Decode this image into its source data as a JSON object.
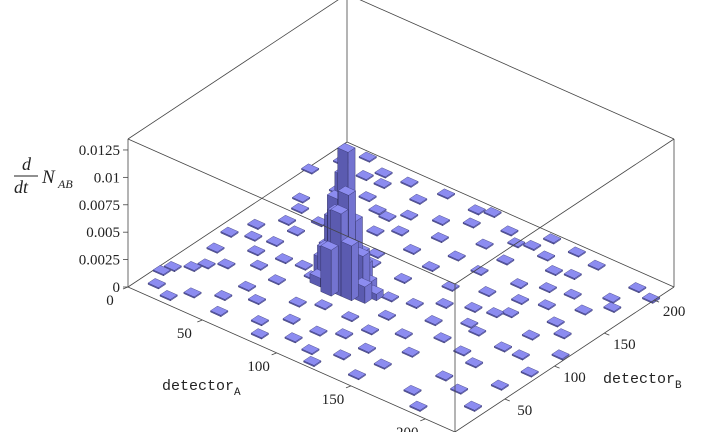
{
  "chart_data": {
    "type": "bar3d",
    "title": "",
    "xlabel_base": "detector",
    "xlabel_sub": "A",
    "ylabel_base": "detector",
    "ylabel_sub": "B",
    "zlabel": {
      "numerator": "d",
      "denominator": "dt",
      "base": "N",
      "sub": "AB"
    },
    "xlim": [
      0,
      220
    ],
    "ylim": [
      0,
      220
    ],
    "zlim": [
      0,
      0.0135
    ],
    "x_ticks": [
      "0",
      "50",
      "100",
      "150",
      "200"
    ],
    "y_ticks": [
      "0",
      "50",
      "100",
      "150",
      "200"
    ],
    "z_ticks": [
      "0",
      "0.0025",
      "0.005",
      "0.0075",
      "0.01",
      "0.0125"
    ],
    "bin_width": 7,
    "bar_color": "#8C8CF0",
    "bar_side_color": "#5B5BB0",
    "peak": {
      "x": 88,
      "y": 88,
      "bars": [
        [
          88,
          88,
          0.0127
        ],
        [
          84,
          91,
          0.0101
        ],
        [
          91,
          84,
          0.0092
        ],
        [
          81,
          88,
          0.008
        ],
        [
          88,
          81,
          0.0075
        ],
        [
          84,
          84,
          0.0071
        ],
        [
          91,
          91,
          0.0064
        ],
        [
          77,
          91,
          0.0058
        ],
        [
          95,
          81,
          0.005
        ],
        [
          81,
          95,
          0.0046
        ],
        [
          84,
          77,
          0.0042
        ],
        [
          98,
          88,
          0.0038
        ],
        [
          77,
          84,
          0.0034
        ],
        [
          91,
          98,
          0.0031
        ],
        [
          74,
          95,
          0.0028
        ],
        [
          95,
          95,
          0.0024
        ],
        [
          88,
          98,
          0.002
        ],
        [
          70,
          91,
          0.0017
        ],
        [
          102,
          84,
          0.0015
        ],
        [
          81,
          102,
          0.0012
        ],
        [
          98,
          95,
          0.001
        ],
        [
          74,
          81,
          0.0008
        ],
        [
          105,
          91,
          0.0006
        ],
        [
          88,
          105,
          0.0005
        ]
      ]
    },
    "background_bins": [
      [
        4,
        28
      ],
      [
        6,
        36
      ],
      [
        10,
        14
      ],
      [
        14,
        44
      ],
      [
        18,
        52
      ],
      [
        22,
        8
      ],
      [
        26,
        60
      ],
      [
        30,
        20
      ],
      [
        12,
        70
      ],
      [
        20,
        96
      ],
      [
        30,
        84
      ],
      [
        34,
        118
      ],
      [
        38,
        136
      ],
      [
        16,
        150
      ],
      [
        26,
        172
      ],
      [
        40,
        196
      ],
      [
        44,
        30
      ],
      [
        48,
        48
      ],
      [
        52,
        14
      ],
      [
        56,
        66
      ],
      [
        60,
        40
      ],
      [
        62,
        104
      ],
      [
        66,
        150
      ],
      [
        70,
        178
      ],
      [
        54,
        120
      ],
      [
        58,
        140
      ],
      [
        64,
        196
      ],
      [
        72,
        212
      ],
      [
        46,
        88
      ],
      [
        40,
        72
      ],
      [
        36,
        160
      ],
      [
        24,
        124
      ],
      [
        74,
        22
      ],
      [
        78,
        54
      ],
      [
        82,
        10
      ],
      [
        86,
        36
      ],
      [
        90,
        62
      ],
      [
        92,
        148
      ],
      [
        96,
        170
      ],
      [
        100,
        196
      ],
      [
        80,
        130
      ],
      [
        84,
        120
      ],
      [
        106,
        118
      ],
      [
        110,
        140
      ],
      [
        114,
        160
      ],
      [
        118,
        182
      ],
      [
        120,
        204
      ],
      [
        102,
        214
      ],
      [
        104,
        36
      ],
      [
        108,
        62
      ],
      [
        112,
        16
      ],
      [
        116,
        44
      ],
      [
        122,
        78
      ],
      [
        126,
        100
      ],
      [
        130,
        130
      ],
      [
        132,
        156
      ],
      [
        136,
        176
      ],
      [
        138,
        200
      ],
      [
        142,
        214
      ],
      [
        124,
        58
      ],
      [
        128,
        24
      ],
      [
        134,
        40
      ],
      [
        140,
        68
      ],
      [
        144,
        92
      ],
      [
        146,
        12
      ],
      [
        150,
        32
      ],
      [
        154,
        54
      ],
      [
        158,
        80
      ],
      [
        160,
        104
      ],
      [
        164,
        124
      ],
      [
        166,
        146
      ],
      [
        170,
        168
      ],
      [
        172,
        190
      ],
      [
        176,
        208
      ],
      [
        148,
        140
      ],
      [
        152,
        120
      ],
      [
        156,
        160
      ],
      [
        162,
        186
      ],
      [
        168,
        100
      ],
      [
        174,
        76
      ],
      [
        178,
        20
      ],
      [
        182,
        46
      ],
      [
        186,
        70
      ],
      [
        188,
        96
      ],
      [
        192,
        118
      ],
      [
        194,
        140
      ],
      [
        198,
        162
      ],
      [
        202,
        184
      ],
      [
        206,
        204
      ],
      [
        210,
        60
      ],
      [
        212,
        30
      ],
      [
        214,
        84
      ],
      [
        216,
        112
      ],
      [
        204,
        132
      ],
      [
        196,
        40
      ],
      [
        190,
        8
      ],
      [
        8,
        90
      ],
      [
        14,
        108
      ],
      [
        22,
        140
      ],
      [
        32,
        100
      ],
      [
        42,
        178
      ],
      [
        50,
        208
      ],
      [
        58,
        90
      ],
      [
        68,
        84
      ],
      [
        76,
        160
      ],
      [
        86,
        186
      ],
      [
        94,
        210
      ],
      [
        98,
        20
      ],
      [
        112,
        96
      ],
      [
        120,
        6
      ],
      [
        130,
        196
      ],
      [
        138,
        112
      ],
      [
        150,
        196
      ],
      [
        160,
        212
      ],
      [
        170,
        130
      ],
      [
        180,
        152
      ],
      [
        184,
        172
      ],
      [
        200,
        96
      ],
      [
        208,
        176
      ],
      [
        218,
        200
      ],
      [
        2,
        180
      ],
      [
        10,
        200
      ],
      [
        18,
        214
      ],
      [
        28,
        196
      ],
      [
        34,
        206
      ],
      [
        46,
        140
      ],
      [
        54,
        170
      ],
      [
        62,
        168
      ]
    ],
    "background_height": 0.00012
  }
}
